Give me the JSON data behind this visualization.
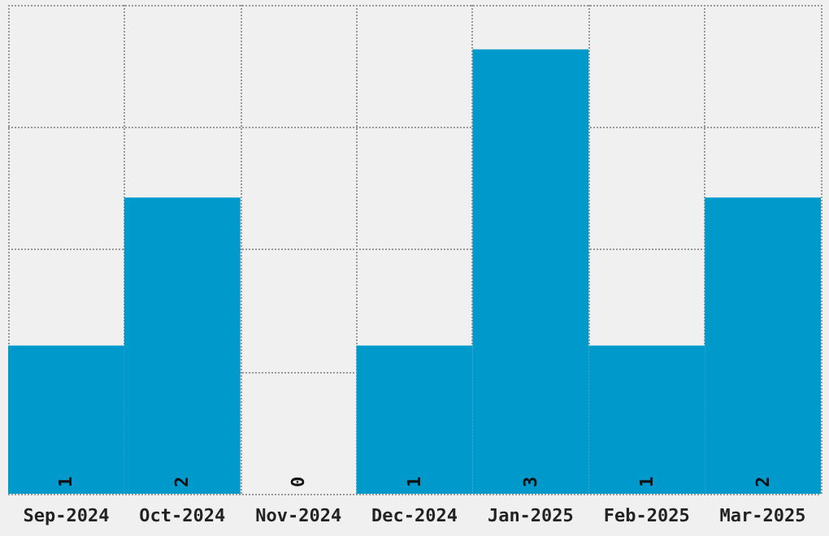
{
  "chart_data": {
    "type": "bar",
    "categories": [
      "Sep-2024",
      "Oct-2024",
      "Nov-2024",
      "Dec-2024",
      "Jan-2025",
      "Feb-2025",
      "Mar-2025"
    ],
    "values": [
      1,
      2,
      0,
      1,
      3,
      1,
      2
    ],
    "color": "#0099cc",
    "data_labels": true,
    "grid": true,
    "ylim": [
      0,
      3.3
    ],
    "yticks": [
      {
        "value": 0,
        "label": null
      },
      {
        "value": 0.825,
        "label": null
      },
      {
        "value": 1.65,
        "label": null
      },
      {
        "value": 2.475,
        "label": null
      },
      {
        "value": 3.3,
        "label": null
      }
    ],
    "tick_labels": "x"
  }
}
